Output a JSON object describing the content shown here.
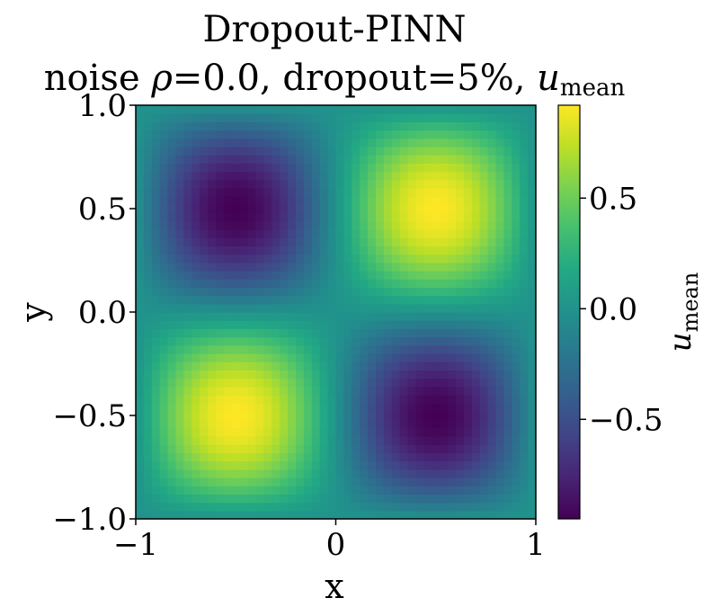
{
  "chart_data": {
    "type": "heatmap",
    "title": "Dropout-PINN",
    "subtitle_prefix": "noise ",
    "subtitle_rho_symbol": "ρ",
    "subtitle_middle": "=0.0, dropout=5%, ",
    "subtitle_var": "u",
    "subtitle_var_sub": "mean",
    "xlabel": "x",
    "ylabel": "y",
    "xlim": [
      -1,
      1
    ],
    "ylim": [
      -1,
      1
    ],
    "xticks": [
      -1,
      0,
      1
    ],
    "xtick_labels": [
      "−1",
      "0",
      "1"
    ],
    "yticks": [
      -1.0,
      -0.5,
      0.0,
      0.5,
      1.0
    ],
    "ytick_labels": [
      "−1.0",
      "−0.5",
      "0.0",
      "0.5",
      "1.0"
    ],
    "field": "u = sin(pi x) * sin(pi y) scaled to colorbar range",
    "value_range": [
      -0.95,
      0.92
    ],
    "extrema": [
      {
        "x": 0.5,
        "y": 0.5,
        "value": 0.92
      },
      {
        "x": -0.5,
        "y": -0.5,
        "value": 0.92
      },
      {
        "x": -0.5,
        "y": 0.5,
        "value": -0.95
      },
      {
        "x": 0.5,
        "y": -0.5,
        "value": -0.95
      }
    ],
    "grid_resolution": 50,
    "colormap": "viridis",
    "colorbar": {
      "label_var": "u",
      "label_sub": "mean",
      "ticks": [
        -0.5,
        0.0,
        0.5
      ],
      "tick_labels": [
        "−0.5",
        "0.0",
        "0.5"
      ],
      "range": [
        -0.95,
        0.92
      ]
    },
    "grid": false
  }
}
